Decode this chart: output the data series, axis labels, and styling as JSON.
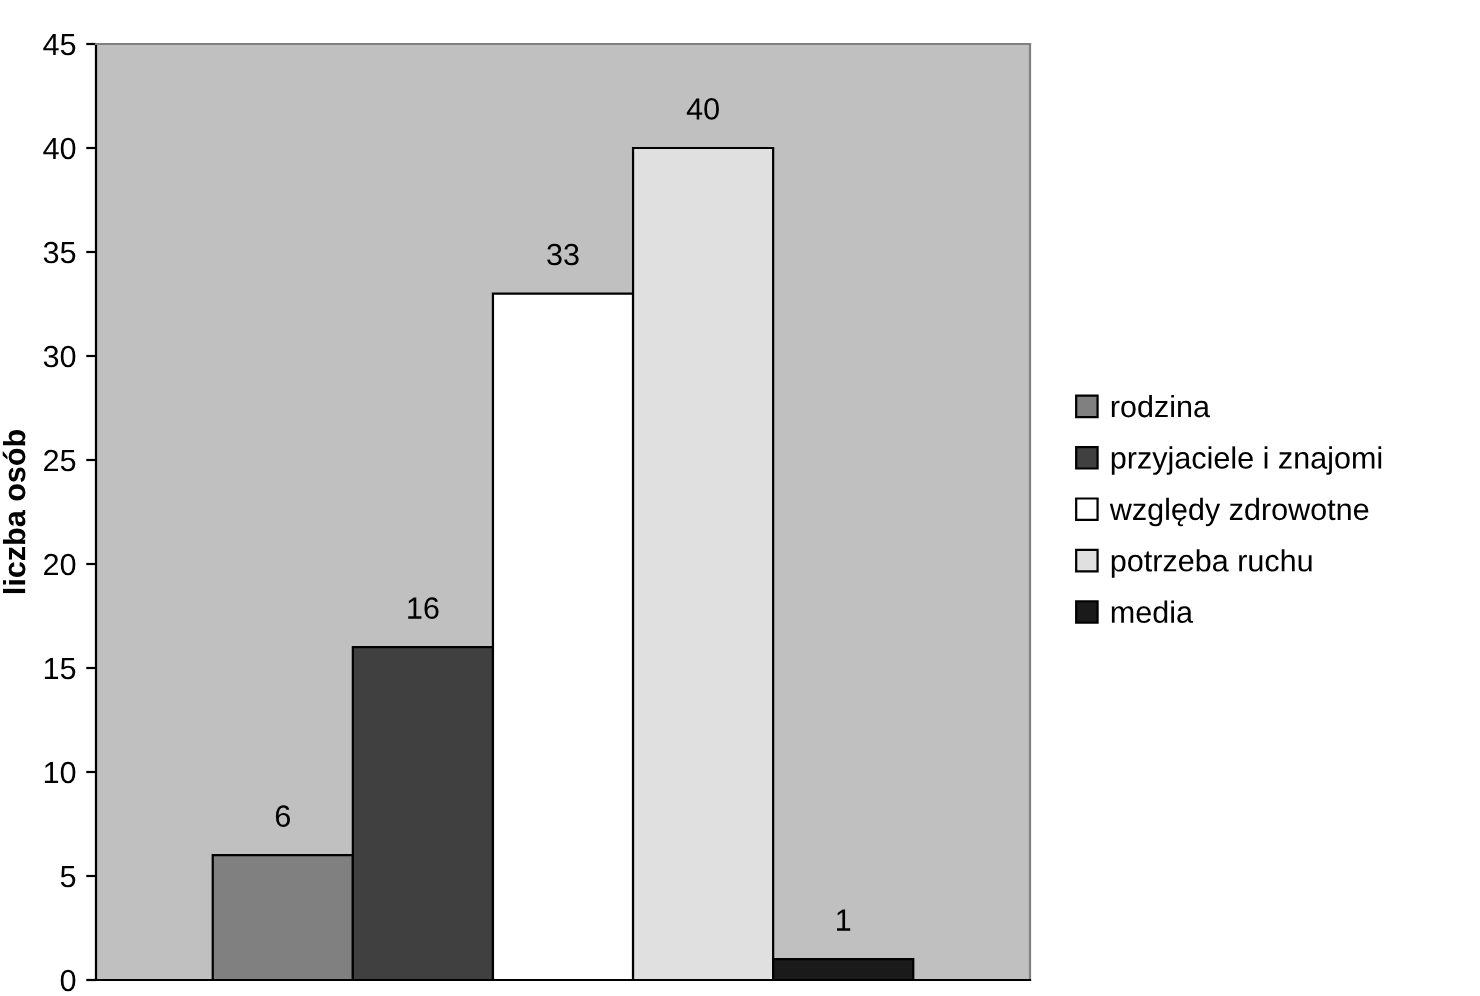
{
  "chart_data": {
    "type": "bar",
    "ylabel": "liczba osób",
    "categories": [
      null
    ],
    "series": [
      {
        "name": "rodzina",
        "color": "#808080",
        "values": [
          6
        ]
      },
      {
        "name": "przyjaciele i znajomi",
        "color": "#404040",
        "values": [
          16
        ]
      },
      {
        "name": "względy zdrowotne",
        "color": "#ffffff",
        "values": [
          33
        ]
      },
      {
        "name": "potrzeba ruchu",
        "color": "#e0e0e0",
        "values": [
          40
        ]
      },
      {
        "name": "media",
        "color": "#1a1a1a",
        "values": [
          1
        ]
      }
    ],
    "ylim": [
      0,
      45
    ],
    "yticks": [
      0,
      5,
      10,
      15,
      20,
      25,
      30,
      35,
      40,
      45
    ],
    "grid": false,
    "legend": "right",
    "data_labels": true
  }
}
